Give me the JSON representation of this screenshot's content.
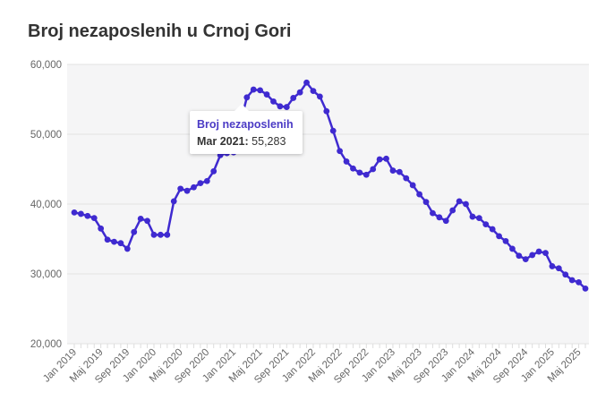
{
  "chart_data": {
    "type": "line",
    "title": "Broj nezaposlenih u Crnoj Gori",
    "series_name": "Broj nezaposlenih",
    "color": "#3f2ad0",
    "ylim": [
      20000,
      60000
    ],
    "yticks": [
      20000,
      30000,
      40000,
      50000,
      60000
    ],
    "ytick_labels": [
      "20,000",
      "30,000",
      "40,000",
      "50,000",
      "60,000"
    ],
    "xtick_labels": [
      "Jan 2019",
      "Maj 2019",
      "Sep 2019",
      "Jan 2020",
      "Maj 2020",
      "Sep 2020",
      "Jan 2021",
      "Maj 2021",
      "Sep 2021",
      "Jan 2022",
      "Maj 2022",
      "Sep 2022",
      "Jan 2023",
      "Maj 2023",
      "Sep 2023",
      "Jan 2024",
      "Maj 2024",
      "Sep 2024",
      "Jan 2025",
      "Maj 2025"
    ],
    "x_start": "Jan 2019",
    "x_frequency": "monthly",
    "values": [
      38800,
      38600,
      38300,
      38000,
      36500,
      34900,
      34600,
      34400,
      33600,
      36000,
      37900,
      37600,
      35600,
      35600,
      35600,
      40400,
      42200,
      41900,
      42400,
      43000,
      43300,
      44700,
      47000,
      47300,
      47400,
      51500,
      55283,
      56400,
      56300,
      55700,
      54700,
      54000,
      53900,
      55200,
      56000,
      57400,
      56200,
      55400,
      53300,
      50500,
      47600,
      46100,
      45100,
      44500,
      44200,
      45000,
      46400,
      46500,
      44800,
      44600,
      43700,
      42700,
      41400,
      40300,
      38700,
      38100,
      37600,
      39100,
      40400,
      40000,
      38200,
      38000,
      37100,
      36400,
      35400,
      34700,
      33600,
      32600,
      32100,
      32700,
      33200,
      33000,
      31100,
      30800,
      29900,
      29100,
      28800,
      27900
    ],
    "grid": true,
    "legend": "none"
  },
  "tooltip": {
    "title": "Broj nezaposlenih",
    "date": "Mar 2021:",
    "value": "55,283"
  }
}
